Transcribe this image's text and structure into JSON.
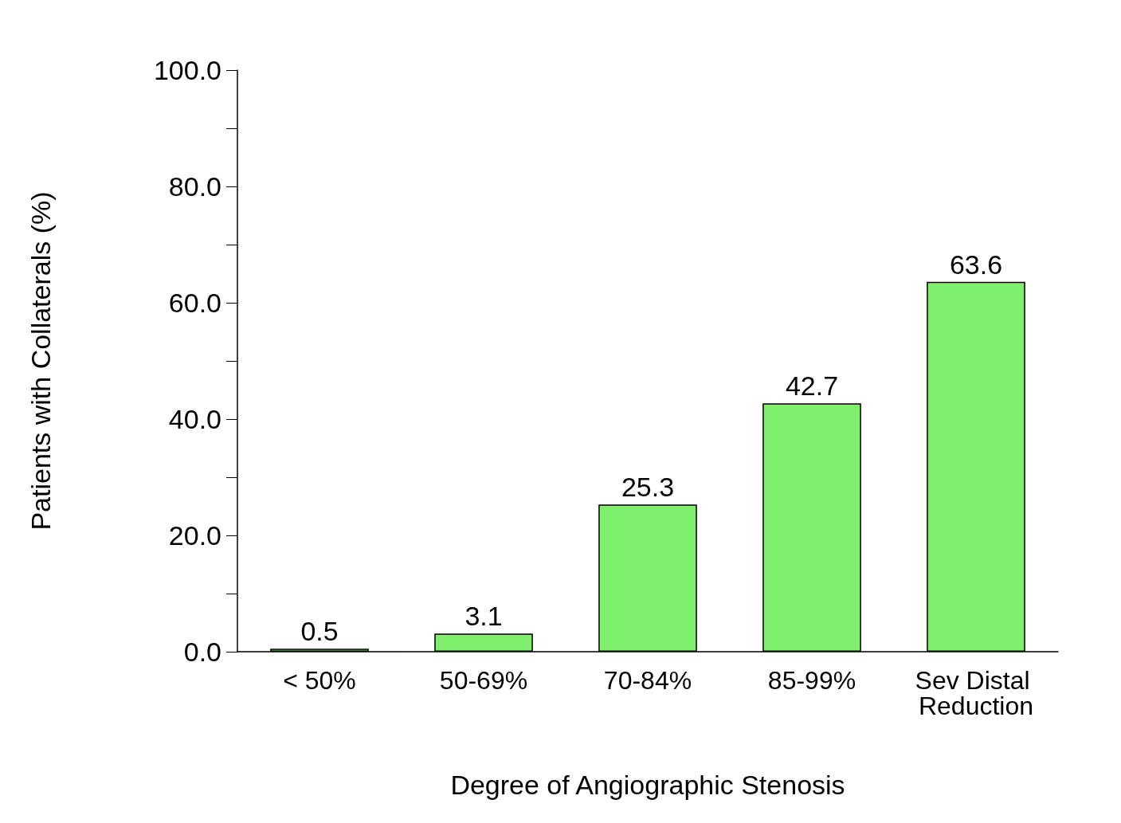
{
  "chart_data": {
    "type": "bar",
    "xlabel": "Degree of Angiographic Stenosis",
    "ylabel": "Patients with Collaterals (%)",
    "categories": [
      "< 50%",
      "50-69%",
      "70-84%",
      "85-99%",
      "Sev Distal Reduction"
    ],
    "values": [
      0.5,
      3.1,
      25.3,
      42.7,
      63.6
    ],
    "color": "#7ff06c",
    "data_labels": true,
    "grid": false,
    "ylim": [
      0,
      100
    ],
    "yticks": [
      {
        "value": 0,
        "label": "0.0"
      },
      {
        "value": 10,
        "label": null
      },
      {
        "value": 20,
        "label": "20.0"
      },
      {
        "value": 30,
        "label": null
      },
      {
        "value": 40,
        "label": "40.0"
      },
      {
        "value": 50,
        "label": null
      },
      {
        "value": 60,
        "label": "60.0"
      },
      {
        "value": 70,
        "label": null
      },
      {
        "value": 80,
        "label": "80.0"
      },
      {
        "value": 90,
        "label": null
      },
      {
        "value": 100,
        "label": "100.0"
      }
    ]
  }
}
